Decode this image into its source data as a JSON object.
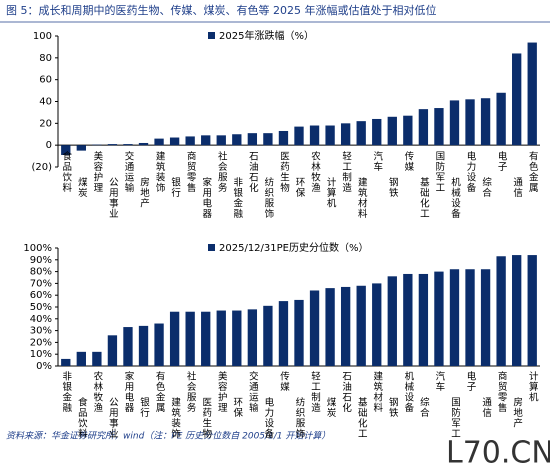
{
  "title": "图 5：成长和周期中的医药生物、传媒、煤炭、有色等 2025 年涨幅或估值处于相对低位",
  "source": "资料来源：华金证券研究所，wind（注：PE 历史分位数自 2005/1/1 开始计算）",
  "watermark": "L70.CN",
  "chart_data": [
    {
      "type": "bar",
      "color": "#0b2d6b",
      "legend": "2025年涨跌幅（%）",
      "categories": [
        "食品饮料",
        "煤炭",
        "美容护理",
        "公用事业",
        "交通运输",
        "房地产",
        "建筑装饰",
        "银行",
        "商贸零售",
        "家用电器",
        "社会服务",
        "非银金融",
        "石油石化",
        "纺织服饰",
        "医药生物",
        "环保",
        "农林牧渔",
        "计算机",
        "轻工制造",
        "建筑材料",
        "汽车",
        "钢铁",
        "传媒",
        "基础化工",
        "国防军工",
        "机械设备",
        "电力设备",
        "综合",
        "电子",
        "通信",
        "有色金属"
      ],
      "values": [
        -9,
        -5,
        0.5,
        1,
        1,
        2,
        6,
        7,
        8,
        9,
        9,
        10,
        11,
        11,
        13,
        17,
        18,
        18,
        20,
        22,
        24,
        26,
        27,
        33,
        34,
        41,
        42,
        43,
        48,
        84,
        94
      ],
      "ylim": [
        -20,
        100
      ],
      "yticks": [
        {
          "value": -20,
          "label": "(20)"
        },
        0,
        20,
        40,
        60,
        80,
        100
      ]
    },
    {
      "type": "bar",
      "color": "#0b2d6b",
      "legend": "2025/12/31PE历史分位数（%）",
      "categories": [
        "非银金融",
        "食品饮料",
        "农林牧渔",
        "公用事业",
        "家用电器",
        "银行",
        "有色金属",
        "建筑装饰",
        "社会服务",
        "医药生物",
        "美容护理",
        "环保",
        "交通运输",
        "电力设备",
        "传媒",
        "纺织服饰",
        "轻工制造",
        "煤炭",
        "石油石化",
        "基础化工",
        "建筑材料",
        "钢铁",
        "机械设备",
        "综合",
        "汽车",
        "国防军工",
        "电子",
        "通信",
        "商贸零售",
        "房地产",
        "计算机"
      ],
      "values": [
        6,
        12,
        12,
        26,
        33,
        34,
        36,
        46,
        46,
        46,
        47,
        47,
        48,
        51,
        55,
        56,
        64,
        66,
        67,
        68,
        70,
        76,
        78,
        78,
        80,
        82,
        82,
        82,
        93,
        94,
        94
      ],
      "ylim": [
        0,
        100
      ],
      "yticks": [
        {
          "value": 0,
          "label": "0%"
        },
        {
          "value": 10,
          "label": "10%"
        },
        {
          "value": 20,
          "label": "20%"
        },
        {
          "value": 30,
          "label": "30%"
        },
        {
          "value": 40,
          "label": "40%"
        },
        {
          "value": 50,
          "label": "50%"
        },
        {
          "value": 60,
          "label": "60%"
        },
        {
          "value": 70,
          "label": "70%"
        },
        {
          "value": 80,
          "label": "80%"
        },
        {
          "value": 90,
          "label": "90%"
        },
        {
          "value": 100,
          "label": "100%"
        }
      ]
    }
  ]
}
